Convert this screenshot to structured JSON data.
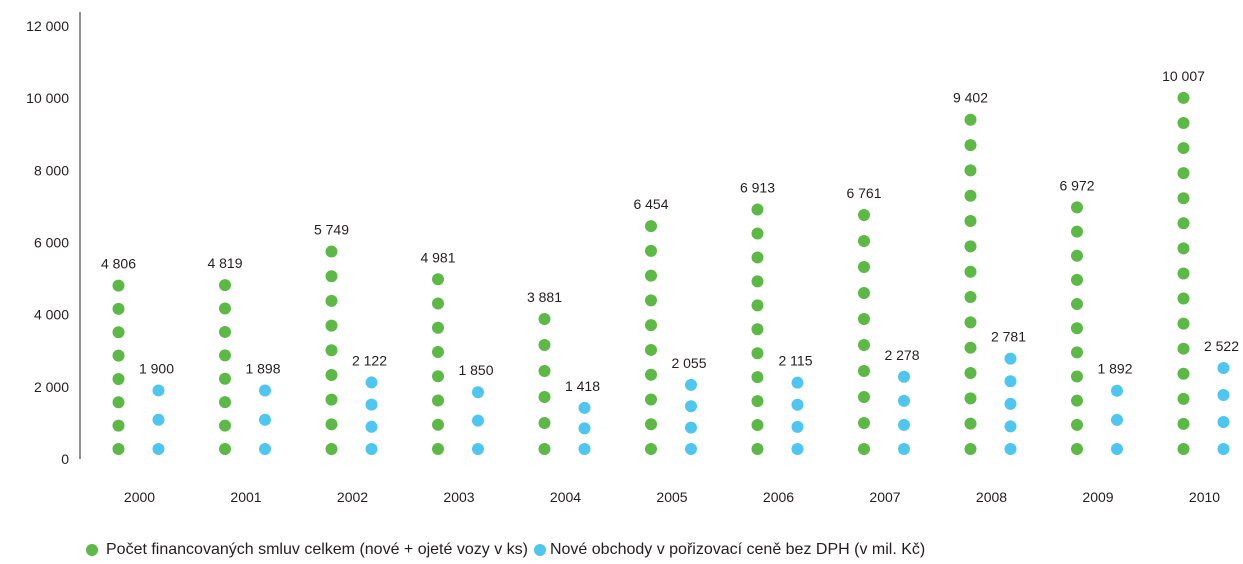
{
  "chart_data": {
    "type": "scatter",
    "categories": [
      "2000",
      "2001",
      "2002",
      "2003",
      "2004",
      "2005",
      "2006",
      "2007",
      "2008",
      "2009",
      "2010"
    ],
    "ylim": [
      0,
      13000
    ],
    "yticks": [
      0,
      2000,
      4000,
      6000,
      8000,
      10000,
      12000
    ],
    "ytick_labels": [
      "0",
      "2 000",
      "4 000",
      "6 000",
      "8 000",
      "10 000",
      "12 000"
    ],
    "grid": false,
    "legend_position": "bottom",
    "series": [
      {
        "name": "Počet financovaných smluv celkem (nové + ojeté vozy v ks)",
        "color": "#5cb946",
        "values": [
          4806,
          4819,
          5749,
          4981,
          3881,
          6454,
          6913,
          6761,
          9402,
          6972,
          10007
        ],
        "value_labels": [
          "4 806",
          "4 819",
          "5 749",
          "4 981",
          "3 881",
          "6 454",
          "6 913",
          "6 761",
          "9 402",
          "6 972",
          "10 007"
        ]
      },
      {
        "name": "Nové obchody v pořizovací ceně bez DPH (v mil. Kč)",
        "color": "#4ec6ef",
        "values": [
          1900,
          1898,
          2122,
          1850,
          1418,
          2055,
          2115,
          2278,
          2781,
          1892,
          2522
        ],
        "value_labels": [
          "1 900",
          "1 898",
          "2 122",
          "1 850",
          "1 418",
          "2 055",
          "2 115",
          "2 278",
          "2 781",
          "1 892",
          "2 522"
        ]
      }
    ]
  }
}
